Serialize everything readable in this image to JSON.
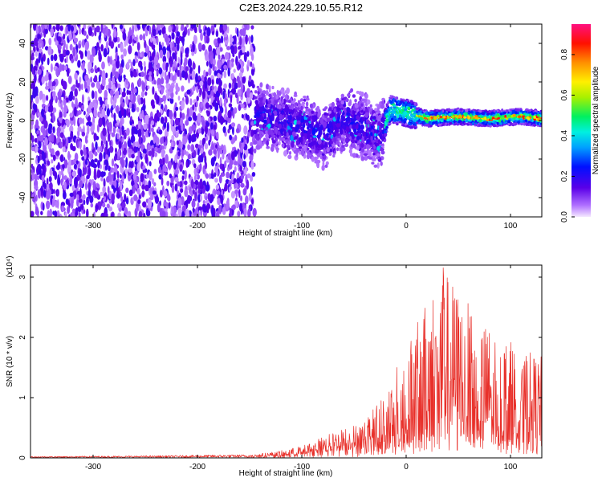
{
  "title": "C2E3.2024.229.10.55.R12",
  "colors": {
    "snr_line": "#e8302a",
    "frame": "#000000"
  },
  "chart_data": [
    {
      "type": "heatmap",
      "title": "C2E3.2024.229.10.55.R12",
      "xlabel": "Height of straight line (km)",
      "ylabel": "Frequency (Hz)",
      "xlim": [
        -360,
        130
      ],
      "ylim": [
        -50,
        50
      ],
      "x_ticks": [
        -300,
        -200,
        -100,
        0,
        100
      ],
      "y_ticks": [
        -40,
        -20,
        0,
        20,
        40
      ],
      "colorbar": {
        "label": "Normalized spectral amplitude",
        "range": [
          0.0,
          0.95
        ],
        "ticks": [
          "0.0",
          "0.2",
          "0.4",
          "0.6",
          "0.8"
        ],
        "tick_values": [
          0.0,
          0.2,
          0.4,
          0.6,
          0.8
        ],
        "colormap": "rainbow (white-violet-blue-cyan-green-yellow-red-magenta)"
      },
      "regions": [
        {
          "x_range": [
            -360,
            -145
          ],
          "freq_range": [
            -50,
            50
          ],
          "amplitude": 0.05,
          "description": "broadband low amplitude noise"
        },
        {
          "x_range": [
            -145,
            -20
          ],
          "freq_range": [
            -25,
            15
          ],
          "amplitude": 0.2,
          "description": "band near 0 Hz with speckle up to 0.3"
        },
        {
          "x_range": [
            -20,
            130
          ],
          "freq_range": [
            -5,
            10
          ],
          "amplitude": 0.55,
          "description": "narrowing band with peak near 0 Hz"
        }
      ],
      "ridge": [
        {
          "x": -140,
          "f": 2
        },
        {
          "x": -120,
          "f": 0
        },
        {
          "x": -100,
          "f": -3
        },
        {
          "x": -80,
          "f": -8
        },
        {
          "x": -60,
          "f": 1
        },
        {
          "x": -40,
          "f": -4
        },
        {
          "x": -25,
          "f": -8
        },
        {
          "x": -15,
          "f": 6
        },
        {
          "x": 0,
          "f": 4
        },
        {
          "x": 20,
          "f": 1
        },
        {
          "x": 50,
          "f": 2
        },
        {
          "x": 80,
          "f": 1
        },
        {
          "x": 110,
          "f": 2
        },
        {
          "x": 130,
          "f": 1
        }
      ]
    },
    {
      "type": "line",
      "xlabel": "Height of straight line (km)",
      "ylabel": "SNR (10 * v/v)",
      "y_multiplier": "(x10⁴)",
      "xlim": [
        -360,
        130
      ],
      "ylim": [
        0,
        3.2
      ],
      "x_ticks": [
        -300,
        -200,
        -100,
        0,
        100
      ],
      "y_ticks": [
        0,
        1,
        2,
        3
      ],
      "series": [
        {
          "envelope": [
            {
              "x": -360,
              "y": 0.02
            },
            {
              "x": -250,
              "y": 0.03
            },
            {
              "x": -150,
              "y": 0.05
            },
            {
              "x": -120,
              "y": 0.12
            },
            {
              "x": -100,
              "y": 0.2
            },
            {
              "x": -80,
              "y": 0.35
            },
            {
              "x": -60,
              "y": 0.5
            },
            {
              "x": -40,
              "y": 0.6
            },
            {
              "x": -25,
              "y": 1.0
            },
            {
              "x": -10,
              "y": 1.5
            },
            {
              "x": 0,
              "y": 1.9
            },
            {
              "x": 15,
              "y": 2.4
            },
            {
              "x": 25,
              "y": 2.9
            },
            {
              "x": 35,
              "y": 3.2
            },
            {
              "x": 50,
              "y": 2.8
            },
            {
              "x": 70,
              "y": 2.3
            },
            {
              "x": 90,
              "y": 2.1
            },
            {
              "x": 110,
              "y": 1.8
            },
            {
              "x": 130,
              "y": 1.7
            }
          ]
        }
      ]
    }
  ]
}
